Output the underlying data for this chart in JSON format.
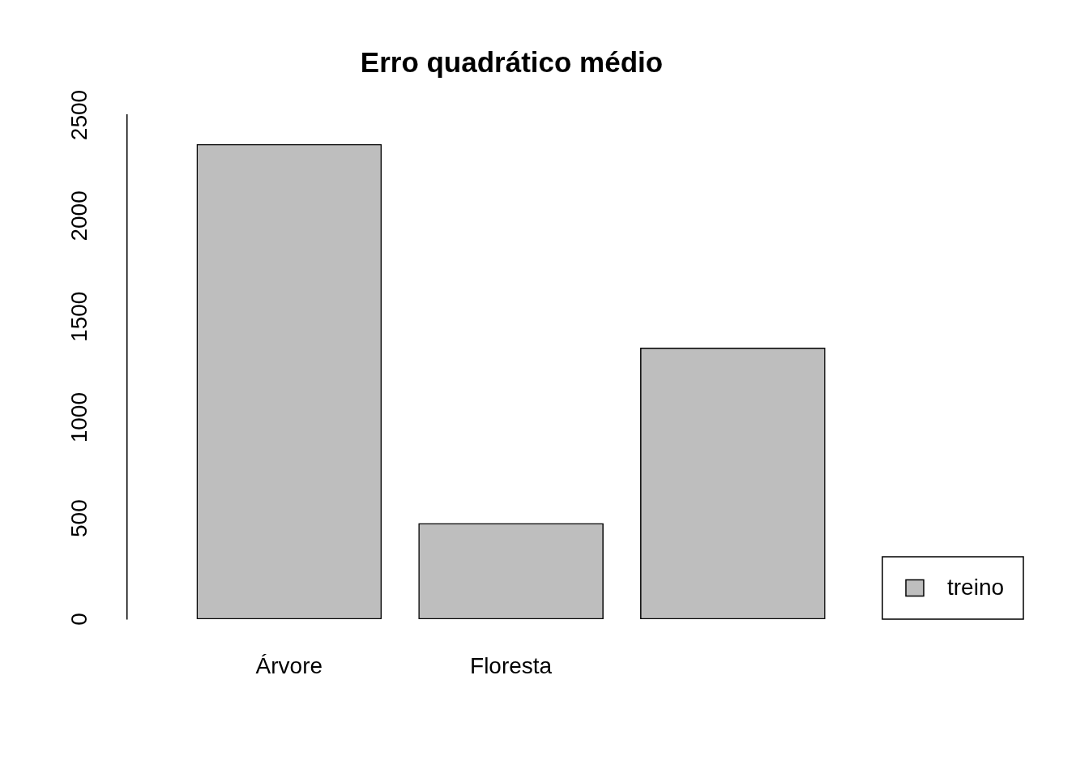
{
  "chart_data": {
    "type": "bar",
    "title": "Erro quadrático médio",
    "categories": [
      "Árvore",
      "Floresta",
      null
    ],
    "series": [
      {
        "name": "treino",
        "color": "#bebebe",
        "values": [
          2355,
          475,
          1345
        ]
      }
    ],
    "ylim": [
      0,
      2500
    ],
    "yticks": [
      0,
      500,
      1000,
      1500,
      2000,
      2500
    ],
    "grid": false,
    "legend": "bottom right"
  }
}
